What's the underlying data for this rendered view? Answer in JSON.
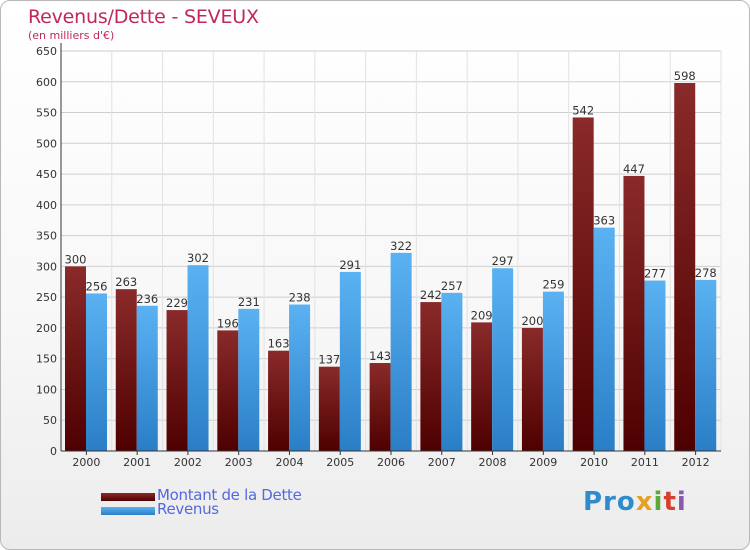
{
  "header": {
    "title": "Revenus/Dette - SEVEUX",
    "subtitle": "(en milliers d'€)"
  },
  "chart_data": {
    "type": "bar",
    "categories": [
      "2000",
      "2001",
      "2002",
      "2003",
      "2004",
      "2005",
      "2006",
      "2007",
      "2008",
      "2009",
      "2010",
      "2011",
      "2012"
    ],
    "series": [
      {
        "name": "Montant de la Dette",
        "values": [
          300,
          263,
          229,
          196,
          163,
          137,
          143,
          242,
          209,
          200,
          542,
          447,
          598
        ],
        "color": "#7a1414"
      },
      {
        "name": "Revenus",
        "values": [
          256,
          236,
          302,
          231,
          238,
          291,
          322,
          257,
          297,
          259,
          363,
          277,
          278
        ],
        "color": "#3c9ae6"
      }
    ],
    "ylim": [
      0,
      650
    ],
    "yticks": [
      0,
      50,
      100,
      150,
      200,
      250,
      300,
      350,
      400,
      450,
      500,
      550,
      600,
      650
    ],
    "grid": true,
    "legend": "bottom-left"
  },
  "legend": {
    "items": [
      {
        "label": "Montant de la Dette",
        "color": "#6a0a0a"
      },
      {
        "label": "Revenus",
        "color": "#3c9ae6"
      }
    ]
  },
  "branding": {
    "logo_text": "Proxiti",
    "logo_parts": [
      "Pro",
      "x",
      "i",
      "t",
      "i"
    ]
  }
}
